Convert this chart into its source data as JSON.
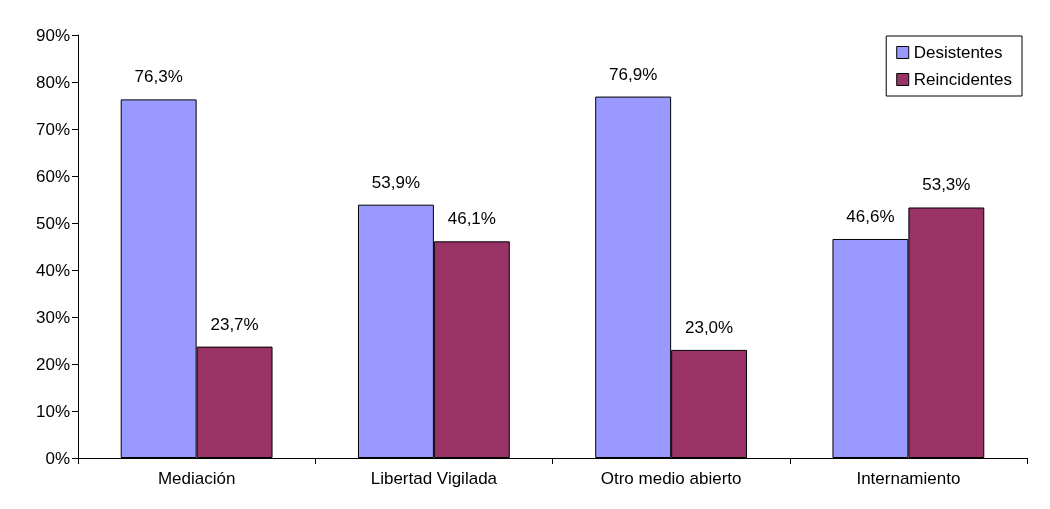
{
  "chart_data": {
    "type": "bar",
    "categories": [
      "Mediación",
      "Libertad Vigilada",
      "Otro medio abierto",
      "Internamiento"
    ],
    "series": [
      {
        "name": "Desistentes",
        "color": "#9999ff",
        "values": [
          76.3,
          53.9,
          76.9,
          46.6
        ],
        "value_labels": [
          "76,3%",
          "53,9%",
          "76,9%",
          "46,6%"
        ]
      },
      {
        "name": "Reincidentes",
        "color": "#993366",
        "values": [
          23.7,
          46.1,
          23.0,
          53.3
        ],
        "value_labels": [
          "23,7%",
          "46,1%",
          "23,0%",
          "53,3%"
        ]
      }
    ],
    "ylim": [
      0,
      90
    ],
    "yticks": [
      {
        "value": 0,
        "label": "0%"
      },
      {
        "value": 10,
        "label": "10%"
      },
      {
        "value": 20,
        "label": "20%"
      },
      {
        "value": 30,
        "label": "30%"
      },
      {
        "value": 40,
        "label": "40%"
      },
      {
        "value": 50,
        "label": "50%"
      },
      {
        "value": 60,
        "label": "60%"
      },
      {
        "value": 70,
        "label": "70%"
      },
      {
        "value": 80,
        "label": "80%"
      },
      {
        "value": 90,
        "label": "90%"
      }
    ],
    "grid": false,
    "legend": "top right"
  }
}
